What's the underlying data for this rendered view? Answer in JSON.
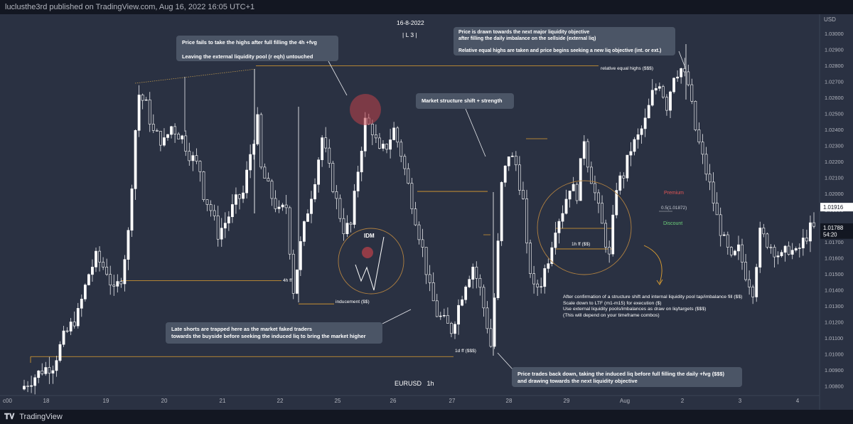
{
  "header": {
    "publish_line": "luclusthe3rd published on TradingView.com, Aug 16, 2022 16:05 UTC+1"
  },
  "footer": {
    "brand": "TradingView"
  },
  "chart_header": {
    "date": "16-8-2022",
    "level": "| L 3 |",
    "symbol_line": "EURUSD   1h"
  },
  "colors": {
    "background": "#2a3142",
    "candle": "#ffffff",
    "level_line": "#e0a030",
    "premium": "#e05555",
    "discount": "#6ccf7a",
    "price_tag_dark": "#131722",
    "price_tag_light": "#ffffff"
  },
  "annotations": {
    "highs_fail": "Price fails to take the highs after full filling the 4h +fvg\n\nLeaving the external liquidity pool (r eqh) untouched",
    "liquidity_objective": "Price is drawn towards the next major liquidity objective\nafter filling the daily imbalance on the sellside (external liq)\n\nRelative equal highs are taken and price begins seeking a new liq objective (int. or ext.)",
    "mss": "Market structure shift + strength",
    "late_shorts": "Late shorts are trapped here as the market faked traders\ntowards the buyside before seeking the induced liq to bring the market higher",
    "trades_back": "Price trades back down, taking the induced liq before full filling the daily +fvg ($$$)\nand drawing towards the next liquidity objective",
    "confirmation": "After confirmation of a structure shift and internal liquidity pool tap/imbalance fill ($$)\nScale down to LTF (m1-m15) for execution ($)\nUse external liquidity pools/imbalances as draw on liq/targets ($$$)\n(This will depend on your timeframe combos)"
  },
  "labels": {
    "relative_equal_highs": "relative equal highs ($$$)",
    "fvg_4h": "4h ff",
    "inducement": "inducement ($$)",
    "fvg_1d": "1d ff ($$$)",
    "fvg_1h": "1h ff ($$)",
    "idm": "IDM",
    "premium": "Premium",
    "equilibrium": "0.5(1.01872)",
    "discount": "Discount"
  },
  "chart_data": {
    "type": "candlestick",
    "symbol": "EURUSD",
    "timeframe": "1h",
    "currency": "USD",
    "x_ticks": [
      "18",
      "19",
      "20",
      "21",
      "22",
      "25",
      "26",
      "27",
      "28",
      "29",
      "Aug",
      "2",
      "3",
      "4"
    ],
    "x_edge_label": "c00",
    "y_ticks": [
      "1.03000",
      "1.02900",
      "1.02800",
      "1.02700",
      "1.02600",
      "1.02500",
      "1.02400",
      "1.02300",
      "1.02200",
      "1.02100",
      "1.02000",
      "1.01900",
      "1.01800",
      "1.01700",
      "1.01600",
      "1.01500",
      "1.01400",
      "1.01300",
      "1.01200",
      "1.01100",
      "1.01000",
      "1.00900",
      "1.00800"
    ],
    "ylim": [
      1.0074,
      1.0312
    ],
    "price_tags": [
      {
        "label": "1.01916",
        "value": 1.01916,
        "style": "light"
      },
      {
        "label": "1.01788",
        "value": 1.01788,
        "style": "dark"
      },
      {
        "label": "54:20",
        "value": 1.01745,
        "style": "dark"
      }
    ],
    "levels": [
      {
        "name": "relative equal highs",
        "price": 1.02798
      },
      {
        "name": "4h ff",
        "price": 1.01457
      },
      {
        "name": "inducement",
        "price": 1.01312
      },
      {
        "name": "1d ff",
        "price": 1.00983
      },
      {
        "name": "mss level",
        "price": 1.02014
      },
      {
        "name": "1h ff",
        "price": 1.01655
      },
      {
        "name": "premium/discount 0.5",
        "price": 1.01872
      }
    ],
    "path_points": [
      [
        0,
        1.0078
      ],
      [
        6,
        1.009
      ],
      [
        9,
        1.0093
      ],
      [
        12,
        1.011
      ],
      [
        16,
        1.0125
      ],
      [
        19,
        1.015
      ],
      [
        21,
        1.016
      ],
      [
        24,
        1.0152
      ],
      [
        26,
        1.0138
      ],
      [
        28,
        1.0148
      ],
      [
        30,
        1.0175
      ],
      [
        32,
        1.024
      ],
      [
        33,
        1.0262
      ],
      [
        35,
        1.0255
      ],
      [
        37,
        1.0238
      ],
      [
        40,
        1.0232
      ],
      [
        42,
        1.0242
      ],
      [
        45,
        1.0235
      ],
      [
        47,
        1.0225
      ],
      [
        50,
        1.0215
      ],
      [
        51,
        1.02
      ],
      [
        53,
        1.019
      ],
      [
        55,
        1.0175
      ],
      [
        57,
        1.0182
      ],
      [
        60,
        1.0195
      ],
      [
        62,
        1.02
      ],
      [
        64,
        1.0225
      ],
      [
        66,
        1.0245
      ],
      [
        67,
        1.0215
      ],
      [
        70,
        1.0198
      ],
      [
        72,
        1.0188
      ],
      [
        74,
        1.0192
      ],
      [
        76,
        1.014
      ],
      [
        78,
        1.0168
      ],
      [
        80,
        1.019
      ],
      [
        82,
        1.021
      ],
      [
        84,
        1.0235
      ],
      [
        86,
        1.0215
      ],
      [
        88,
        1.0195
      ],
      [
        90,
        1.0178
      ],
      [
        92,
        1.018
      ],
      [
        94,
        1.0215
      ],
      [
        96,
        1.0245
      ],
      [
        98,
        1.024
      ],
      [
        100,
        1.0225
      ],
      [
        102,
        1.023
      ],
      [
        104,
        1.024
      ],
      [
        106,
        1.0225
      ],
      [
        108,
        1.0205
      ],
      [
        110,
        1.0185
      ],
      [
        112,
        1.0165
      ],
      [
        114,
        1.014
      ],
      [
        116,
        1.0125
      ],
      [
        118,
        1.012
      ],
      [
        120,
        1.0115
      ],
      [
        122,
        1.013
      ],
      [
        124,
        1.0145
      ],
      [
        126,
        1.0155
      ],
      [
        128,
        1.014
      ],
      [
        130,
        1.0118
      ],
      [
        131,
        1.0105
      ],
      [
        132,
        1.0135
      ],
      [
        133,
        1.0168
      ],
      [
        134,
        1.0205
      ],
      [
        136,
        1.0225
      ],
      [
        138,
        1.0218
      ],
      [
        140,
        1.0195
      ],
      [
        141,
        1.0165
      ],
      [
        143,
        1.014
      ],
      [
        145,
        1.0145
      ],
      [
        147,
        1.016
      ],
      [
        149,
        1.018
      ],
      [
        151,
        1.019
      ],
      [
        153,
        1.0205
      ],
      [
        155,
        1.02
      ],
      [
        157,
        1.0235
      ],
      [
        158,
        1.022
      ],
      [
        160,
        1.02
      ],
      [
        162,
        1.018
      ],
      [
        164,
        1.016
      ],
      [
        166,
        1.0205
      ],
      [
        168,
        1.0212
      ],
      [
        170,
        1.0228
      ],
      [
        172,
        1.0235
      ],
      [
        174,
        1.0245
      ],
      [
        176,
        1.0262
      ],
      [
        178,
        1.027
      ],
      [
        180,
        1.0255
      ],
      [
        182,
        1.0275
      ],
      [
        184,
        1.0278
      ],
      [
        186,
        1.0268
      ],
      [
        188,
        1.024
      ],
      [
        190,
        1.0222
      ],
      [
        192,
        1.0205
      ],
      [
        194,
        1.0185
      ],
      [
        196,
        1.017
      ],
      [
        198,
        1.0158
      ],
      [
        200,
        1.0165
      ],
      [
        202,
        1.015
      ],
      [
        204,
        1.014
      ],
      [
        206,
        1.0175
      ],
      [
        208,
        1.017
      ],
      [
        210,
        1.0165
      ],
      [
        212,
        1.016
      ],
      [
        214,
        1.0166
      ],
      [
        216,
        1.0162
      ],
      [
        218,
        1.017
      ],
      [
        220,
        1.0178
      ]
    ]
  }
}
